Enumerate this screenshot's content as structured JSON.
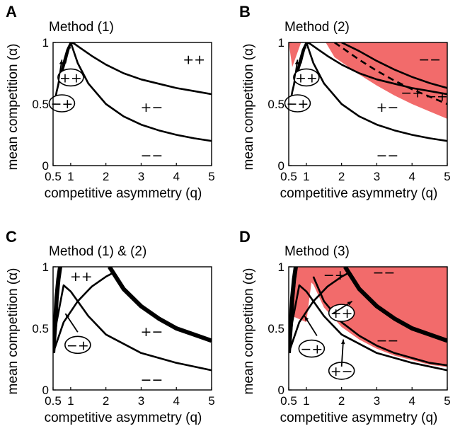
{
  "colors": {
    "fill": "#f26b6b",
    "curve": "#000000"
  },
  "chart_data": [
    {
      "panel": "A",
      "title": "Method (1)",
      "type": "line",
      "xlabel": "competitive asymmetry (q)",
      "ylabel": "mean competition (α)",
      "xlim": [
        0.5,
        5
      ],
      "ylim": [
        0,
        1
      ],
      "xticks": [
        "0.5",
        "1",
        "2",
        "3",
        "4",
        "5"
      ],
      "yticks": [
        "0",
        "0.5",
        "1"
      ],
      "regions": [
        "++",
        "+−",
        "−−",
        "++",
        "−+"
      ],
      "curves": [
        {
          "x": [
            0.7,
            0.8,
            0.9,
            1.0,
            1.2,
            1.5,
            2,
            2.5,
            3,
            3.5,
            4,
            4.5,
            5
          ],
          "y": [
            0.7,
            0.8,
            0.9,
            1.0,
            0.833,
            0.667,
            0.5,
            0.4,
            0.333,
            0.286,
            0.25,
            0.222,
            0.2
          ]
        },
        {
          "x": [
            0.85,
            0.9,
            0.95,
            1.0,
            1.1,
            1.3,
            1.6,
            2,
            2.5,
            3,
            3.5,
            4,
            4.5,
            5
          ],
          "y": [
            0.86,
            0.91,
            0.96,
            1.0,
            0.99,
            0.95,
            0.89,
            0.82,
            0.75,
            0.7,
            0.665,
            0.63,
            0.605,
            0.58
          ]
        },
        {
          "x": [
            0.55,
            0.6,
            0.7,
            0.8,
            0.9,
            1.0
          ],
          "y": [
            0.52,
            0.6,
            0.72,
            0.84,
            0.94,
            1.0
          ]
        }
      ]
    },
    {
      "panel": "B",
      "title": "Method (2)",
      "type": "line",
      "xlabel": "competitive asymmetry (q)",
      "ylabel": "mean competition (α)",
      "xlim": [
        0.5,
        5
      ],
      "ylim": [
        0,
        1
      ],
      "xticks": [
        "0.5",
        "1",
        "2",
        "3",
        "4",
        "5"
      ],
      "yticks": [
        "0",
        "0.5",
        "1"
      ],
      "regions": [
        "−−",
        "−+",
        "−+",
        "+−",
        "−−",
        "++",
        "−+"
      ],
      "curves": [
        {
          "x": [
            0.7,
            0.8,
            0.9,
            1.0,
            1.2,
            1.5,
            2,
            2.5,
            3,
            3.5,
            4,
            4.5,
            5
          ],
          "y": [
            0.7,
            0.8,
            0.9,
            1.0,
            0.833,
            0.667,
            0.5,
            0.4,
            0.333,
            0.286,
            0.25,
            0.222,
            0.2
          ]
        },
        {
          "x": [
            0.85,
            0.9,
            0.95,
            1.0,
            1.1,
            1.3,
            1.6,
            2,
            2.5,
            3,
            3.5,
            4,
            4.5,
            5
          ],
          "y": [
            0.86,
            0.91,
            0.96,
            1.0,
            0.99,
            0.95,
            0.89,
            0.82,
            0.75,
            0.7,
            0.665,
            0.63,
            0.605,
            0.58
          ]
        },
        {
          "x": [
            0.55,
            0.6,
            0.7,
            0.8,
            0.9,
            1.0
          ],
          "y": [
            0.52,
            0.6,
            0.72,
            0.84,
            0.94,
            1.0
          ]
        },
        {
          "x": [
            2.0,
            2.5,
            3,
            3.5,
            4,
            4.5,
            5
          ],
          "y": [
            1.0,
            0.93,
            0.85,
            0.78,
            0.72,
            0.67,
            0.63
          ],
          "dashed": false
        },
        {
          "x": [
            1.8,
            2.5,
            3,
            3.5,
            4,
            4.5,
            5
          ],
          "y": [
            1.0,
            0.86,
            0.77,
            0.69,
            0.62,
            0.56,
            0.5
          ],
          "dashed": true
        }
      ]
    },
    {
      "panel": "C",
      "title": "Method (1) & (2)",
      "type": "line",
      "xlabel": "competitive asymmetry (q)",
      "ylabel": "mean competition (α)",
      "xlim": [
        0.5,
        5
      ],
      "ylim": [
        0,
        1
      ],
      "xticks": [
        "0.5",
        "1",
        "2",
        "3",
        "4",
        "5"
      ],
      "yticks": [
        "0",
        "0.5",
        "1"
      ],
      "regions": [
        "++",
        "+−",
        "−−",
        "−+"
      ],
      "curves": [
        {
          "x": [
            0.5,
            0.8,
            1.2,
            1.6,
            2.0,
            2.2
          ],
          "y": [
            0.3,
            0.55,
            0.72,
            0.84,
            0.92,
            0.95
          ]
        },
        {
          "x": [
            0.5,
            0.6,
            0.8,
            1.0,
            1.5,
            2,
            3,
            4,
            5
          ],
          "y": [
            0.3,
            0.55,
            0.85,
            0.8,
            0.6,
            0.45,
            0.3,
            0.22,
            0.16
          ]
        },
        {
          "x": [
            0.5,
            0.55,
            0.6,
            0.65,
            0.7
          ],
          "y": [
            0.3,
            0.5,
            0.75,
            0.9,
            1.0
          ],
          "bold": true
        },
        {
          "x": [
            2.1,
            2.5,
            3,
            3.5,
            4,
            4.5,
            5
          ],
          "y": [
            1.0,
            0.82,
            0.68,
            0.58,
            0.5,
            0.45,
            0.4
          ],
          "bold": true
        }
      ]
    },
    {
      "panel": "D",
      "title": "Method (3)",
      "type": "line",
      "xlabel": "competitive asymmetry (q)",
      "ylabel": "mean competition (α)",
      "xlim": [
        0.5,
        5
      ],
      "ylim": [
        0,
        1
      ],
      "xticks": [
        "0.5",
        "1",
        "2",
        "3",
        "4",
        "5"
      ],
      "yticks": [
        "0",
        "0.5",
        "1"
      ],
      "regions": [
        "−+",
        "−−",
        "−−",
        "++",
        "−+",
        "+−"
      ],
      "curves": [
        {
          "x": [
            0.5,
            0.8,
            1.2,
            1.6,
            2.0,
            2.2
          ],
          "y": [
            0.3,
            0.55,
            0.72,
            0.84,
            0.92,
            0.95
          ]
        },
        {
          "x": [
            0.5,
            0.6,
            0.8,
            1.0,
            1.5,
            2,
            3,
            4,
            5
          ],
          "y": [
            0.3,
            0.55,
            0.85,
            0.8,
            0.6,
            0.45,
            0.3,
            0.22,
            0.16
          ]
        },
        {
          "x": [
            0.5,
            0.55,
            0.6,
            0.65,
            0.7
          ],
          "y": [
            0.3,
            0.5,
            0.75,
            0.9,
            1.0
          ],
          "bold": true
        },
        {
          "x": [
            2.1,
            2.5,
            3,
            3.5,
            4,
            4.5,
            5
          ],
          "y": [
            1.0,
            0.82,
            0.68,
            0.58,
            0.5,
            0.45,
            0.4
          ],
          "bold": true
        },
        {
          "x": [
            1.2,
            1.5,
            2,
            2.5,
            3,
            3.5,
            4,
            4.5,
            5
          ],
          "y": [
            0.92,
            0.72,
            0.55,
            0.44,
            0.36,
            0.3,
            0.26,
            0.22,
            0.2
          ]
        }
      ]
    }
  ]
}
